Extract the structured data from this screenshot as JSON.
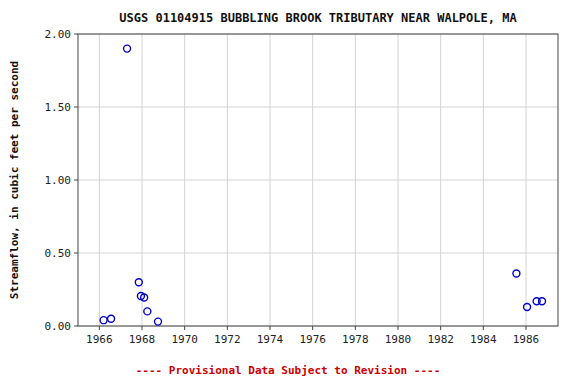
{
  "chart_data": {
    "type": "scatter",
    "title": "USGS 01104915 BUBBLING BROOK TRIBUTARY NEAR WALPOLE, MA",
    "ylabel": "Streamflow, in cubic feet per second",
    "annotations": [
      "---- Provisional Data Subject to Revision ----"
    ],
    "x": [
      1966.2,
      1966.55,
      1967.3,
      1967.85,
      1967.95,
      1968.1,
      1968.25,
      1968.75,
      1985.55,
      1986.05,
      1986.5,
      1986.75
    ],
    "values": [
      0.04,
      0.05,
      1.9,
      0.3,
      0.205,
      0.195,
      0.1,
      0.03,
      0.36,
      0.13,
      0.17,
      0.17
    ],
    "color": "#0000cc",
    "marker": "circle",
    "xlim": [
      1965.0,
      1987.5
    ],
    "ylim": [
      0.0,
      2.0
    ],
    "xticks": [
      1966,
      1968,
      1970,
      1972,
      1974,
      1976,
      1978,
      1980,
      1982,
      1984,
      1986
    ],
    "yticks": [
      {
        "value": 0.0,
        "label": "0.00"
      },
      {
        "value": 0.5,
        "label": "0.50"
      },
      {
        "value": 1.0,
        "label": "1.00"
      },
      {
        "value": 1.5,
        "label": "1.50"
      },
      {
        "value": 2.0,
        "label": "2.00"
      }
    ],
    "grid": true
  }
}
